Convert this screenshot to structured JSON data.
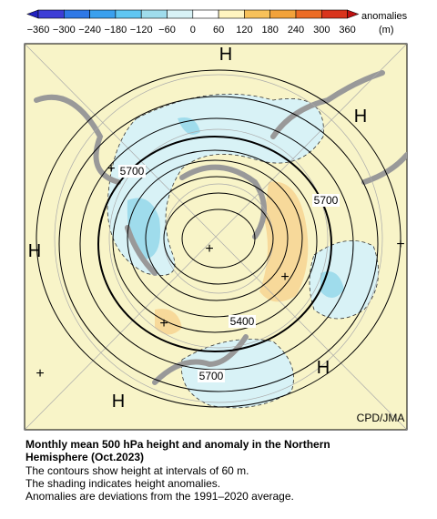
{
  "colorbar": {
    "ticks": [
      "−360",
      "−300",
      "−240",
      "−180",
      "−120",
      "−60",
      "0",
      "60",
      "120",
      "180",
      "240",
      "300",
      "360"
    ],
    "unit_title": "anomalies",
    "unit": "(m)"
  },
  "map_labels": [
    "H",
    "H",
    "H",
    "H",
    "H",
    "+",
    "+",
    "+",
    "+",
    "+",
    "+",
    "5700",
    "5700",
    "5400",
    "5700",
    "CPD/JMA"
  ],
  "caption": {
    "title_lines": [
      "Monthly mean 500 hPa height and anomaly in the Northern",
      "Hemisphere (Oct.2023)"
    ],
    "lines": [
      "The contours show height at intervals of 60 m.",
      "The shading indicates height anomalies.",
      "Anomalies are deviations from the 1991–2020 average."
    ]
  }
}
